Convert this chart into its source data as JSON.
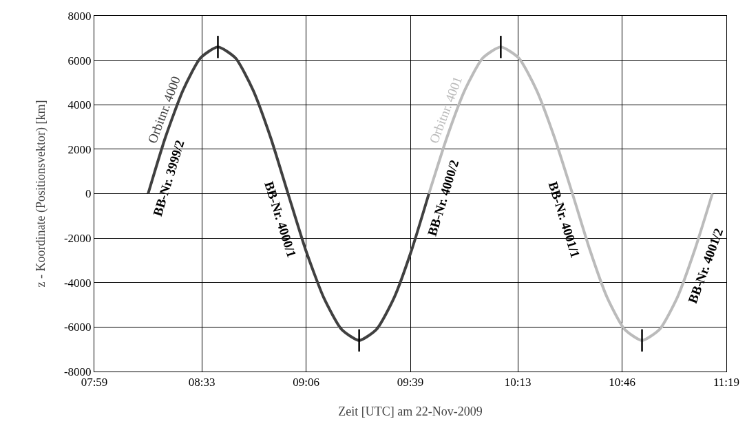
{
  "chart_data": {
    "type": "line",
    "xlabel": "Zeit [UTC] am 22-Nov-2009",
    "ylabel": "z - Koordinate (Positionsvektor) [km]",
    "xlim": [
      7.9833,
      11.3167
    ],
    "xticks": [
      {
        "value": 7.9833,
        "label": "07:59"
      },
      {
        "value": 8.55,
        "label": "08:33"
      },
      {
        "value": 9.1,
        "label": "09:06"
      },
      {
        "value": 9.65,
        "label": "09:39"
      },
      {
        "value": 10.2167,
        "label": "10:13"
      },
      {
        "value": 10.7667,
        "label": "10:46"
      },
      {
        "value": 11.3167,
        "label": "11:19"
      }
    ],
    "ylim": [
      -8000,
      8000
    ],
    "yticks": [
      -8000,
      -6000,
      -4000,
      -2000,
      0,
      2000,
      4000,
      6000,
      8000
    ],
    "grid": true,
    "line_style": "solid",
    "marker": "none",
    "series": [
      {
        "name": "Orbitnr. 4000",
        "color": "#404040",
        "x": [
          8.267,
          8.358,
          8.452,
          8.543,
          8.635,
          8.728,
          8.82,
          8.913,
          9.005,
          9.098,
          9.193,
          9.287,
          9.38,
          9.472,
          9.565,
          9.657,
          9.748
        ],
        "values": [
          0,
          2530,
          4670,
          6100,
          6600,
          6100,
          4670,
          2530,
          0,
          -2530,
          -4670,
          -6100,
          -6600,
          -6100,
          -4670,
          -2530,
          0
        ]
      },
      {
        "name": "Orbitnr. 4001",
        "color": "#bbbbbb",
        "x": [
          9.748,
          9.843,
          9.938,
          10.032,
          10.127,
          10.222,
          10.315,
          10.41,
          10.505,
          10.597,
          10.688,
          10.78,
          10.872,
          10.965,
          11.058,
          11.15,
          11.243
        ],
        "values": [
          0,
          2530,
          4670,
          6100,
          6600,
          6100,
          4670,
          2530,
          0,
          -2530,
          -4670,
          -6100,
          -6600,
          -6100,
          -4670,
          -2530,
          0
        ]
      },
      {
        "color": "#000000",
        "x": [
          8.635,
          8.635
        ],
        "values": [
          6100,
          7100
        ]
      },
      {
        "color": "#000000",
        "x": [
          9.38,
          9.38
        ],
        "values": [
          -7100,
          -6100
        ]
      },
      {
        "color": "#000000",
        "x": [
          10.127,
          10.127
        ],
        "values": [
          6100,
          7100
        ]
      },
      {
        "color": "#000000",
        "x": [
          10.872,
          10.872
        ],
        "values": [
          -7100,
          -6100
        ]
      }
    ],
    "annotations": [
      {
        "text": "BB-Nr. 3999/2",
        "x": 8.3,
        "y": 900
      },
      {
        "text": "BB-Nr. 4000/1",
        "x": 9.04,
        "y": -950
      },
      {
        "text": "BB-Nr. 4000/2",
        "x": 9.748,
        "y": 0
      },
      {
        "text": "BB-Nr. 4001/1",
        "x": 10.54,
        "y": -960
      },
      {
        "text": "BB-Nr. 4001/2",
        "x": 11.13,
        "y": -3000
      }
    ]
  }
}
